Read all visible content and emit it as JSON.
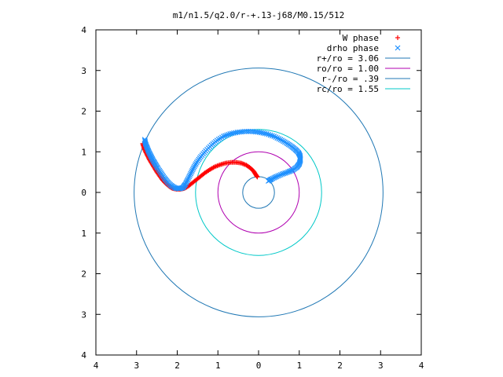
{
  "chart_data": {
    "type": "scatter",
    "title": "m1/n1.5/q2.0/r-+.13-j68/M0.15/512",
    "xlim": [
      -4,
      4
    ],
    "ylim": [
      -4,
      4
    ],
    "xticks": [
      -4,
      -3,
      -2,
      -1,
      0,
      1,
      2,
      3,
      4
    ],
    "xtick_labels": [
      "4",
      "3",
      "2",
      "1",
      "0",
      "1",
      "2",
      "3",
      "4"
    ],
    "yticks": [
      4,
      3,
      2,
      1,
      0,
      -1,
      -2,
      -3,
      -4
    ],
    "ytick_labels": [
      "4",
      "3",
      "2",
      "1",
      "0",
      "1",
      "2",
      "3",
      "4"
    ],
    "grid": false,
    "legend_position": "top-right",
    "series": [
      {
        "name": "W phase",
        "kind": "points",
        "marker": "+",
        "color": "#ff0000",
        "points": [
          [
            -2.85,
            1.2
          ],
          [
            -2.82,
            1.1
          ],
          [
            -2.78,
            1.0
          ],
          [
            -2.73,
            0.9
          ],
          [
            -2.68,
            0.8
          ],
          [
            -2.62,
            0.7
          ],
          [
            -2.56,
            0.6
          ],
          [
            -2.5,
            0.5
          ],
          [
            -2.43,
            0.4
          ],
          [
            -2.36,
            0.3
          ],
          [
            -2.28,
            0.22
          ],
          [
            -2.2,
            0.15
          ],
          [
            -2.12,
            0.1
          ],
          [
            -2.02,
            0.08
          ],
          [
            -1.92,
            0.08
          ],
          [
            -1.82,
            0.1
          ],
          [
            -1.72,
            0.16
          ],
          [
            -1.62,
            0.24
          ],
          [
            -1.52,
            0.32
          ],
          [
            -1.42,
            0.4
          ],
          [
            -1.32,
            0.48
          ],
          [
            -1.2,
            0.56
          ],
          [
            -1.08,
            0.63
          ],
          [
            -0.95,
            0.68
          ],
          [
            -0.82,
            0.72
          ],
          [
            -0.68,
            0.74
          ],
          [
            -0.55,
            0.74
          ],
          [
            -0.42,
            0.72
          ],
          [
            -0.3,
            0.67
          ],
          [
            -0.2,
            0.6
          ],
          [
            -0.12,
            0.52
          ],
          [
            -0.07,
            0.44
          ],
          [
            -0.03,
            0.38
          ]
        ]
      },
      {
        "name": "drho phase",
        "kind": "points",
        "marker": "x",
        "color": "#1e90ff",
        "points": [
          [
            -2.8,
            1.3
          ],
          [
            -2.78,
            1.2
          ],
          [
            -2.74,
            1.1
          ],
          [
            -2.7,
            1.0
          ],
          [
            -2.65,
            0.9
          ],
          [
            -2.6,
            0.8
          ],
          [
            -2.54,
            0.7
          ],
          [
            -2.48,
            0.6
          ],
          [
            -2.4,
            0.48
          ],
          [
            -2.32,
            0.36
          ],
          [
            -2.24,
            0.26
          ],
          [
            -2.15,
            0.17
          ],
          [
            -2.05,
            0.11
          ],
          [
            -1.95,
            0.09
          ],
          [
            -1.86,
            0.12
          ],
          [
            -1.8,
            0.2
          ],
          [
            -1.74,
            0.32
          ],
          [
            -1.67,
            0.46
          ],
          [
            -1.6,
            0.6
          ],
          [
            -1.52,
            0.74
          ],
          [
            -1.42,
            0.88
          ],
          [
            -1.3,
            1.02
          ],
          [
            -1.16,
            1.16
          ],
          [
            -1.02,
            1.28
          ],
          [
            -0.86,
            1.38
          ],
          [
            -0.7,
            1.44
          ],
          [
            -0.52,
            1.48
          ],
          [
            -0.34,
            1.5
          ],
          [
            -0.16,
            1.5
          ],
          [
            0.02,
            1.48
          ],
          [
            0.2,
            1.44
          ],
          [
            0.38,
            1.38
          ],
          [
            0.54,
            1.3
          ],
          [
            0.68,
            1.22
          ],
          [
            0.8,
            1.14
          ],
          [
            0.9,
            1.06
          ],
          [
            0.98,
            0.98
          ],
          [
            1.02,
            0.9
          ],
          [
            1.03,
            0.8
          ],
          [
            1.0,
            0.7
          ],
          [
            0.94,
            0.62
          ],
          [
            0.84,
            0.55
          ],
          [
            0.72,
            0.5
          ],
          [
            0.58,
            0.45
          ],
          [
            0.44,
            0.39
          ],
          [
            0.32,
            0.33
          ],
          [
            0.24,
            0.28
          ]
        ]
      },
      {
        "name": "r+/ro = 3.06",
        "kind": "circle",
        "radius": 3.06,
        "color": "#1f77b4"
      },
      {
        "name": "ro/ro = 1.00",
        "kind": "circle",
        "radius": 1.0,
        "color": "#b000b0"
      },
      {
        "name": "r-/ro = .39",
        "kind": "circle",
        "radius": 0.39,
        "color": "#1f77b4"
      },
      {
        "name": "rc/ro = 1.55",
        "kind": "circle",
        "radius": 1.55,
        "color": "#00c8c8"
      }
    ]
  }
}
